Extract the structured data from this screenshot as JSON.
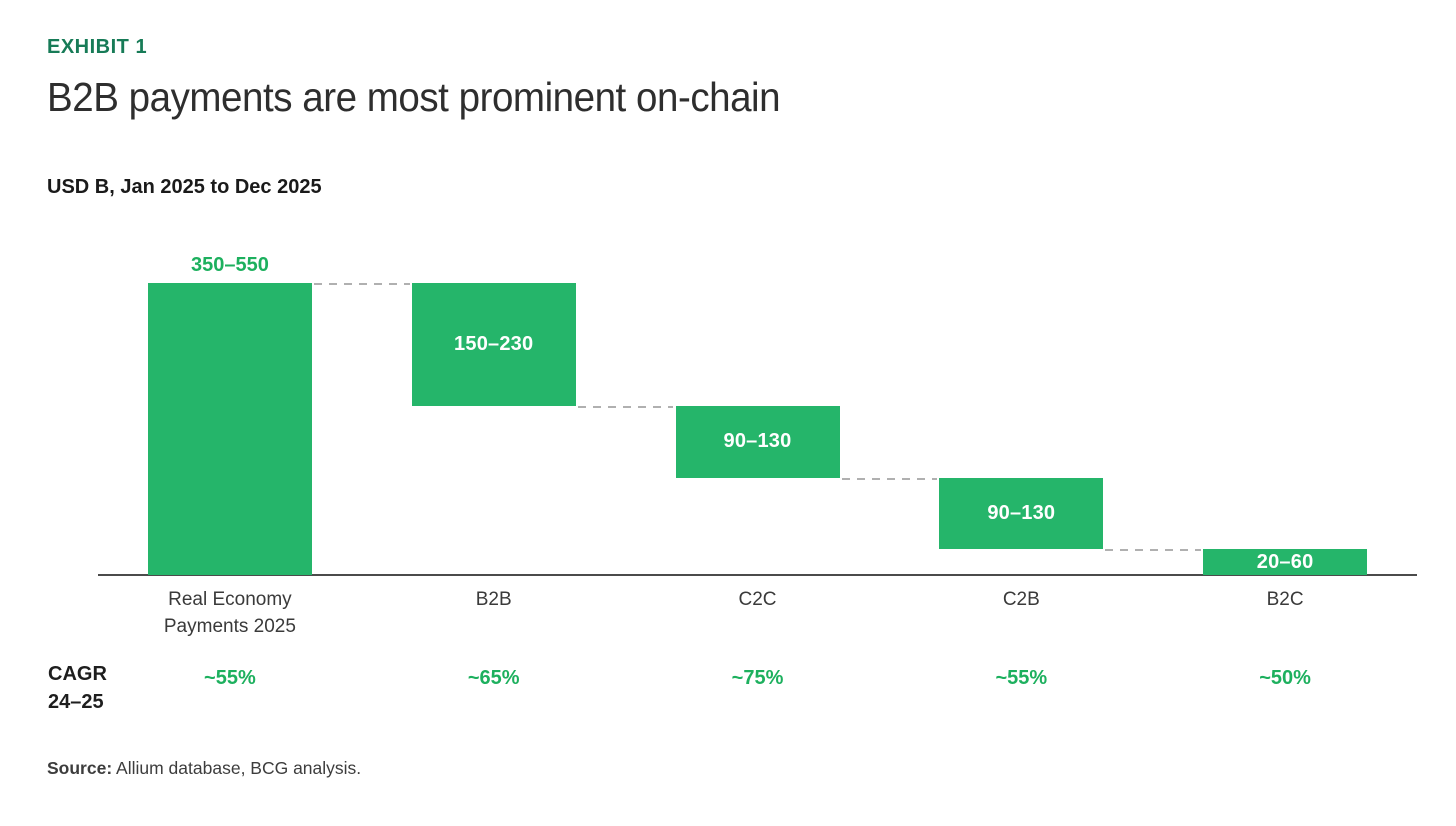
{
  "header": {
    "exhibit_label": "EXHIBIT 1",
    "title": "B2B payments are most prominent on-chain",
    "subtitle": "USD B, Jan 2025 to Dec 2025"
  },
  "chart_data": {
    "type": "bar",
    "subtype": "waterfall",
    "title": "B2B payments are most prominent on-chain",
    "unit": "USD B",
    "period": "Jan 2025 to Dec 2025",
    "xlabel": "",
    "ylabel": "USD B",
    "ylim": [
      0,
      550
    ],
    "grid": false,
    "categories": [
      "Real Economy\nPayments 2025",
      "B2B",
      "C2C",
      "C2B",
      "B2C"
    ],
    "bars": [
      {
        "category": "Real Economy\nPayments 2025",
        "range_label": "350–550",
        "low": 350,
        "high": 550,
        "mid": 450,
        "start": 0,
        "end": 450,
        "label_placement": "above",
        "cagr": "~55%"
      },
      {
        "category": "B2B",
        "range_label": "150–230",
        "low": 150,
        "high": 230,
        "mid": 190,
        "start": 450,
        "end": 260,
        "label_placement": "inside",
        "cagr": "~65%"
      },
      {
        "category": "C2C",
        "range_label": "90–130",
        "low": 90,
        "high": 130,
        "mid": 110,
        "start": 260,
        "end": 150,
        "label_placement": "inside",
        "cagr": "~75%"
      },
      {
        "category": "C2B",
        "range_label": "90–130",
        "low": 90,
        "high": 130,
        "mid": 110,
        "start": 150,
        "end": 40,
        "label_placement": "inside",
        "cagr": "~55%"
      },
      {
        "category": "B2C",
        "range_label": "20–60",
        "low": 20,
        "high": 60,
        "mid": 40,
        "start": 40,
        "end": 0,
        "label_placement": "inside",
        "cagr": "~50%"
      }
    ],
    "cagr_row": {
      "label_line1": "CAGR",
      "label_line2": "24–25",
      "values": [
        "~55%",
        "~65%",
        "~75%",
        "~55%",
        "~50%"
      ]
    },
    "legend": null
  },
  "footer": {
    "source_label": "Source:",
    "source_text": " Allium database, BCG analysis."
  },
  "colors": {
    "bar_green": "#25b56a",
    "text_green": "#1db05e",
    "exhibit_green": "#177b57",
    "axis_gray": "#4b4b4b",
    "connector_gray": "#b0b0b0"
  }
}
